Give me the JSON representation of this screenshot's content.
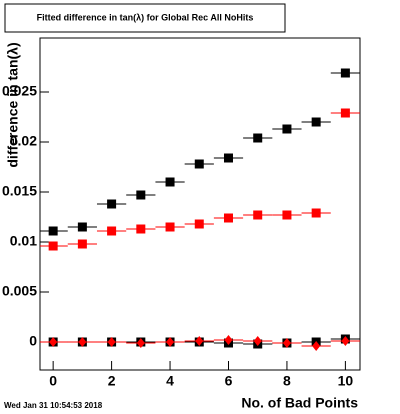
{
  "chart_data": {
    "type": "scatter",
    "title": "Fitted difference in tan(λ) for Global Rec All NoHits",
    "y_label": "difference in tan(λ)",
    "x_label": "No. of Bad Points",
    "timestamp": "Wed Jan 31 10:54:53 2018",
    "x": [
      0,
      1,
      2,
      3,
      4,
      5,
      6,
      7,
      8,
      9,
      10
    ],
    "series": [
      {
        "color": "#000000",
        "marker": "square",
        "values": [
          0.0111,
          0.0115,
          0.0138,
          0.0147,
          0.016,
          0.0178,
          0.0184,
          0.0204,
          0.0213,
          0.022,
          0.0269
        ]
      },
      {
        "color": "#ff0000",
        "marker": "square",
        "values": [
          0.0096,
          0.0098,
          0.0111,
          0.0113,
          0.0115,
          0.0118,
          0.0124,
          0.0127,
          0.0127,
          0.0129,
          0.0229
        ]
      },
      {
        "color": "#000000",
        "marker": "square",
        "values": [
          0,
          0,
          0,
          0,
          0,
          0,
          -0.0001,
          -0.0002,
          -0.0001,
          0,
          0.0003
        ]
      },
      {
        "color": "#ff0000",
        "marker": "diamond",
        "values": [
          0,
          0,
          0,
          -0.0001,
          0,
          0.0001,
          0.0002,
          0.0001,
          -0.0001,
          -0.0004,
          0.0001
        ]
      }
    ],
    "xlim": [
      -0.45,
      10.5
    ],
    "ylim": [
      -0.0028,
      0.0304
    ],
    "xticks": [
      0,
      2,
      4,
      6,
      8,
      10
    ],
    "yticks": [
      0,
      0.005,
      0.01,
      0.015,
      0.02,
      0.025
    ],
    "grid": false
  }
}
